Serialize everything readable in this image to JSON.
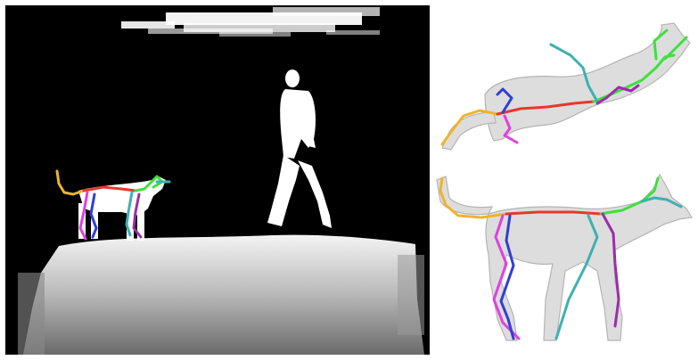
{
  "figure": {
    "panels": [
      {
        "id": "depth-view",
        "kind": "depth image with skeleton overlay"
      },
      {
        "id": "mesh-top-view",
        "kind": "3D mesh with skeleton, top-down"
      },
      {
        "id": "mesh-side-view",
        "kind": "3D mesh with skeleton, side"
      }
    ]
  },
  "colors": {
    "background": "#000000",
    "foreground": "#ffffff",
    "mesh_fill": "#d6d6d6",
    "mesh_stroke": "#a8a8a8",
    "tail": "#f0b429",
    "spine": "#e8372c",
    "neck_head": "#3ee03e",
    "front_leg_1": "#c632c6",
    "front_leg_2": "#9a2ea8",
    "hind_leg_1": "#e040e0",
    "hind_leg_2": "#2f3fd8",
    "cyan_leg": "#3fb0b0"
  }
}
